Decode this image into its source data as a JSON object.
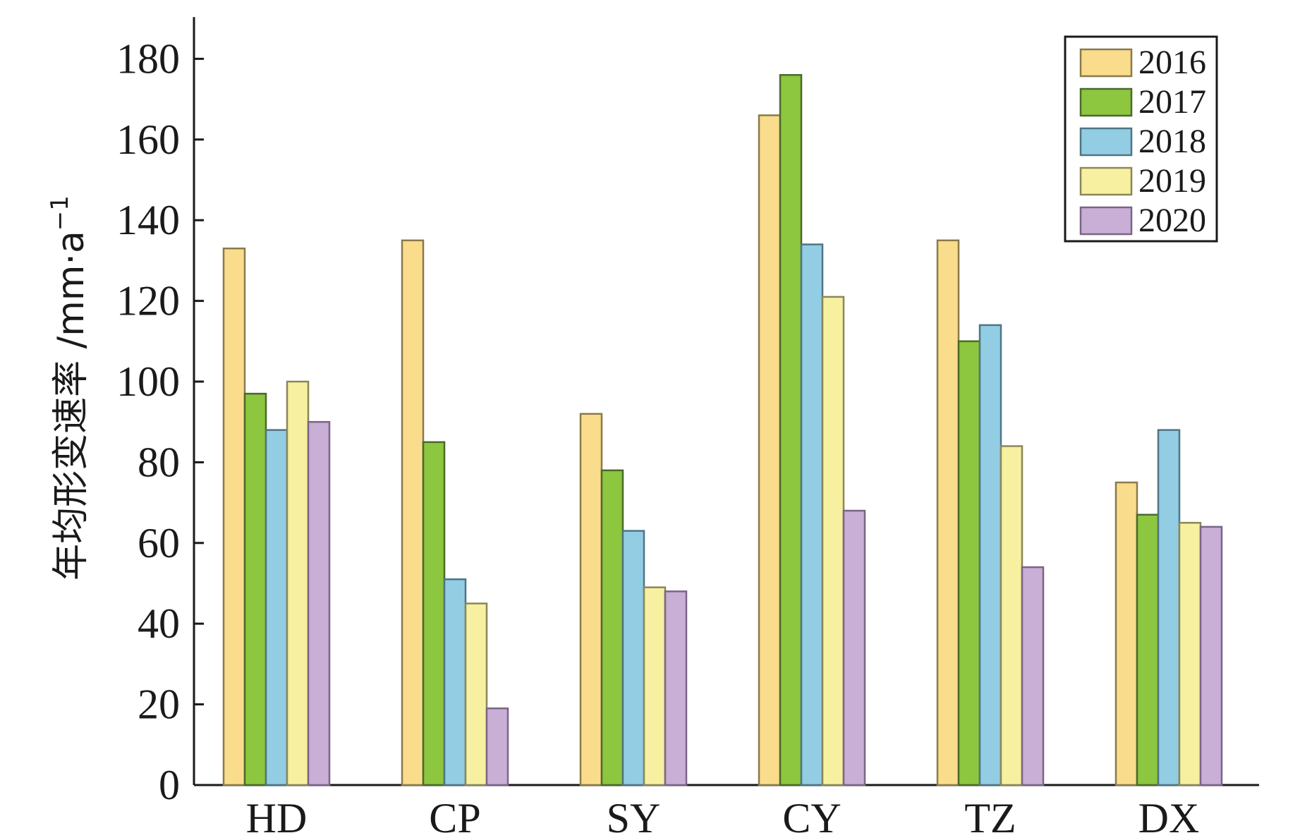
{
  "chart_data": {
    "type": "bar",
    "title": "",
    "xlabel": "",
    "ylabel": "年均形变速率 /mm·a⁻¹",
    "ylabel_main": "年均形变速率 /mm·a",
    "ylabel_sup": "−1",
    "ylim": [
      0,
      190
    ],
    "yticks": [
      0,
      20,
      40,
      60,
      80,
      100,
      120,
      140,
      160,
      180
    ],
    "categories": [
      "HD",
      "CP",
      "SY",
      "CY",
      "TZ",
      "DX"
    ],
    "legend_position": "top-right",
    "series": [
      {
        "name": "2016",
        "color": "#f9dc8c",
        "stroke": "#8a7a4a",
        "values": [
          133,
          135,
          92,
          166,
          135,
          75
        ]
      },
      {
        "name": "2017",
        "color": "#8dc63f",
        "stroke": "#4a6a2a",
        "values": [
          97,
          85,
          78,
          176,
          110,
          67
        ]
      },
      {
        "name": "2018",
        "color": "#92cde3",
        "stroke": "#4e7584",
        "values": [
          88,
          51,
          63,
          134,
          114,
          88
        ]
      },
      {
        "name": "2019",
        "color": "#f6f0a0",
        "stroke": "#8a865a",
        "values": [
          100,
          45,
          49,
          121,
          84,
          65
        ]
      },
      {
        "name": "2020",
        "color": "#c9aed6",
        "stroke": "#7a6585",
        "values": [
          90,
          19,
          48,
          68,
          54,
          64
        ]
      }
    ]
  }
}
